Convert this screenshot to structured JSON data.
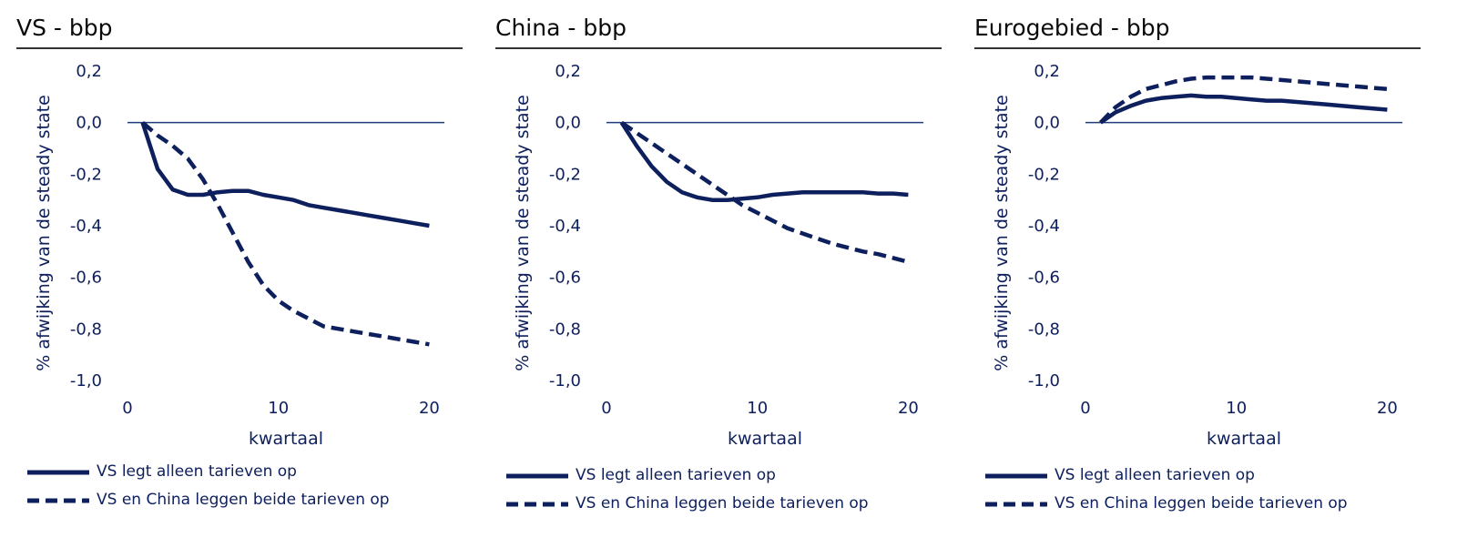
{
  "colors": {
    "series": "#0d1f5c",
    "zero_line": "#1f3d7a",
    "title": "#0a0a0a"
  },
  "chart_data": [
    {
      "type": "line",
      "title": "VS - bbp",
      "xlabel": "kwartaal",
      "ylabel": "% afwijking van de steady state",
      "xlim": [
        0,
        21
      ],
      "ylim": [
        -1.0,
        0.2
      ],
      "xticks": [
        0,
        10,
        20
      ],
      "yticks": [
        0.2,
        0.0,
        -0.2,
        -0.4,
        -0.6,
        -0.8,
        -1.0
      ],
      "ytick_labels": [
        "0,2",
        "0,0",
        "-0,2",
        "-0,4",
        "-0,6",
        "-0,8",
        "-1,0"
      ],
      "grid": false,
      "legend_position": "bottom",
      "series": [
        {
          "name": "VS legt alleen tarieven op",
          "style": "solid",
          "x": [
            1,
            2,
            3,
            4,
            5,
            6,
            7,
            8,
            9,
            10,
            11,
            12,
            13,
            14,
            15,
            16,
            17,
            18,
            19,
            20
          ],
          "values": [
            0.0,
            -0.18,
            -0.26,
            -0.28,
            -0.28,
            -0.27,
            -0.265,
            -0.265,
            -0.28,
            -0.29,
            -0.3,
            -0.32,
            -0.33,
            -0.34,
            -0.35,
            -0.36,
            -0.37,
            -0.38,
            -0.39,
            -0.4
          ]
        },
        {
          "name": "VS en China leggen beide tarieven op",
          "style": "dashed",
          "x": [
            1,
            2,
            3,
            4,
            5,
            6,
            7,
            8,
            9,
            10,
            11,
            12,
            13,
            14,
            15,
            16,
            17,
            18,
            19,
            20
          ],
          "values": [
            0.0,
            -0.05,
            -0.09,
            -0.14,
            -0.22,
            -0.32,
            -0.43,
            -0.54,
            -0.63,
            -0.69,
            -0.73,
            -0.76,
            -0.79,
            -0.8,
            -0.81,
            -0.82,
            -0.83,
            -0.84,
            -0.85,
            -0.86
          ]
        }
      ]
    },
    {
      "type": "line",
      "title": "China - bbp",
      "xlabel": "kwartaal",
      "ylabel": "% afwijking van de steady state",
      "xlim": [
        0,
        21
      ],
      "ylim": [
        -1.0,
        0.2
      ],
      "xticks": [
        0,
        10,
        20
      ],
      "yticks": [
        0.2,
        0.0,
        -0.2,
        -0.4,
        -0.6,
        -0.8,
        -1.0
      ],
      "ytick_labels": [
        "0,2",
        "0,0",
        "-0,2",
        "-0,4",
        "-0,6",
        "-0,8",
        "-1,0"
      ],
      "grid": false,
      "legend_position": "bottom",
      "series": [
        {
          "name": "VS legt alleen tarieven op",
          "style": "solid",
          "x": [
            1,
            2,
            3,
            4,
            5,
            6,
            7,
            8,
            9,
            10,
            11,
            12,
            13,
            14,
            15,
            16,
            17,
            18,
            19,
            20
          ],
          "values": [
            0.0,
            -0.09,
            -0.17,
            -0.23,
            -0.27,
            -0.29,
            -0.3,
            -0.3,
            -0.295,
            -0.29,
            -0.28,
            -0.275,
            -0.27,
            -0.27,
            -0.27,
            -0.27,
            -0.27,
            -0.275,
            -0.275,
            -0.28
          ]
        },
        {
          "name": "VS en China leggen beide tarieven op",
          "style": "dashed",
          "x": [
            1,
            2,
            3,
            4,
            5,
            6,
            7,
            8,
            9,
            10,
            11,
            12,
            13,
            14,
            15,
            16,
            17,
            18,
            19,
            20
          ],
          "values": [
            0.0,
            -0.04,
            -0.08,
            -0.12,
            -0.16,
            -0.2,
            -0.24,
            -0.28,
            -0.32,
            -0.35,
            -0.38,
            -0.41,
            -0.43,
            -0.45,
            -0.47,
            -0.485,
            -0.5,
            -0.51,
            -0.525,
            -0.54
          ]
        }
      ]
    },
    {
      "type": "line",
      "title": "Eurogebied - bbp",
      "xlabel": "kwartaal",
      "ylabel": "% afwijking van de steady state",
      "xlim": [
        0,
        21
      ],
      "ylim": [
        -1.0,
        0.2
      ],
      "xticks": [
        0,
        10,
        20
      ],
      "yticks": [
        0.2,
        0.0,
        -0.2,
        -0.4,
        -0.6,
        -0.8,
        -1.0
      ],
      "ytick_labels": [
        "0,2",
        "0,0",
        "-0,2",
        "-0,4",
        "-0,6",
        "-0,8",
        "-1,0"
      ],
      "grid": false,
      "legend_position": "bottom",
      "series": [
        {
          "name": "VS legt alleen tarieven op",
          "style": "solid",
          "x": [
            1,
            2,
            3,
            4,
            5,
            6,
            7,
            8,
            9,
            10,
            11,
            12,
            13,
            14,
            15,
            16,
            17,
            18,
            19,
            20
          ],
          "values": [
            0.0,
            0.04,
            0.065,
            0.085,
            0.095,
            0.1,
            0.105,
            0.1,
            0.1,
            0.095,
            0.09,
            0.085,
            0.085,
            0.08,
            0.075,
            0.07,
            0.065,
            0.06,
            0.055,
            0.05
          ]
        },
        {
          "name": "VS en China leggen beide tarieven op",
          "style": "dashed",
          "x": [
            1,
            2,
            3,
            4,
            5,
            6,
            7,
            8,
            9,
            10,
            11,
            12,
            13,
            14,
            15,
            16,
            17,
            18,
            19,
            20
          ],
          "values": [
            0.0,
            0.06,
            0.1,
            0.13,
            0.145,
            0.16,
            0.17,
            0.175,
            0.175,
            0.175,
            0.175,
            0.17,
            0.165,
            0.16,
            0.155,
            0.15,
            0.145,
            0.14,
            0.135,
            0.13
          ]
        }
      ]
    }
  ]
}
